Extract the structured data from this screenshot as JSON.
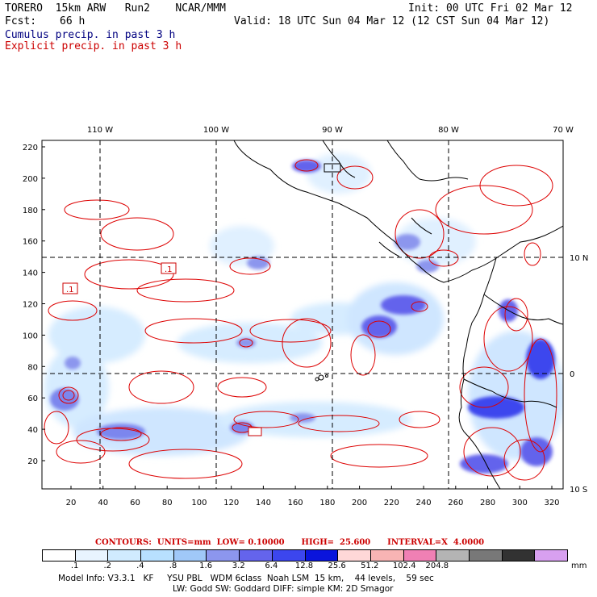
{
  "header": {
    "model": "TORERO  15km ARW   Run2    NCAR/MMM",
    "init": "Init: 00 UTC Fri 02 Mar 12",
    "fcst_label": "Fcst:",
    "fcst_value": "66 h",
    "valid": "Valid: 18 UTC Sun 04 Mar 12 (12 CST Sun 04 Mar 12)"
  },
  "legend": {
    "cumulus": "Cumulus precip. in past 3 h",
    "explicit": "Explicit precip. in past 3 h",
    "cumulus_color": "#000080",
    "explicit_color": "#cc0000"
  },
  "map": {
    "top_lon_labels": [
      "110 W",
      "100 W",
      "90 W",
      "80 W",
      "70 W"
    ],
    "right_lat_labels": [
      "10 N",
      "0",
      "10 S"
    ],
    "y_ticks": [
      "220",
      "200",
      "180",
      "160",
      "140",
      "120",
      "100",
      "80",
      "60",
      "40",
      "20"
    ],
    "x_ticks": [
      "20",
      "40",
      "60",
      "80",
      "100",
      "120",
      "140",
      "160",
      "180",
      "200",
      "220",
      "240",
      "260",
      "280",
      "300",
      "320"
    ],
    "contour_labels": [
      ".1",
      ".1"
    ],
    "land_color": "#000000",
    "grid_color": "#000000"
  },
  "contours_info": {
    "line": "CONTOURS:  UNITS=mm  LOW= 0.10000      HIGH=  25.600      INTERVAL=X  4.0000"
  },
  "colorbar": {
    "colors": [
      "#ffffff",
      "#e8f4ff",
      "#d0ebff",
      "#b8e0ff",
      "#a0c8f8",
      "#8c96ee",
      "#6464ec",
      "#3c46ee",
      "#0a14dc",
      "#ffd8d8",
      "#f8b4b4",
      "#f080b4",
      "#b4b4b4",
      "#787878",
      "#323232",
      "#d8a0f0"
    ],
    "labels": [
      ".1",
      ".2",
      ".4",
      ".8",
      "1.6",
      "3.2",
      "6.4",
      "12.8",
      "25.6",
      "51.2",
      "102.4",
      "204.8"
    ],
    "units": "mm"
  },
  "model_info": {
    "line1": "Model Info: V3.3.1   KF     YSU PBL   WDM 6class  Noah LSM  15 km,    44 levels,    59 sec",
    "line2": "LW: Godd SW: Goddard DIFF: simple KM: 2D Smagor"
  }
}
